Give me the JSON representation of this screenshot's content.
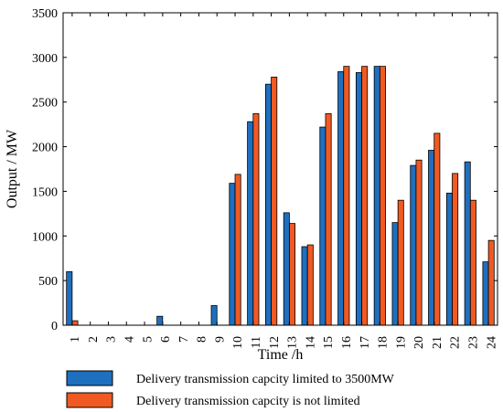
{
  "chart_data": {
    "type": "bar",
    "xlabel": "Time /h",
    "ylabel": "Output / MW",
    "ylim": [
      0,
      3500
    ],
    "yticks": [
      0,
      500,
      1000,
      1500,
      2000,
      2500,
      3000,
      3500
    ],
    "categories": [
      "1",
      "2",
      "3",
      "4",
      "5",
      "6",
      "7",
      "8",
      "9",
      "10",
      "11",
      "12",
      "13",
      "14",
      "15",
      "16",
      "17",
      "18",
      "19",
      "20",
      "21",
      "22",
      "23",
      "24"
    ],
    "series": [
      {
        "name": "Delivery transmission capcity limited to 3500MW",
        "color": "#1f6fbf",
        "values": [
          600,
          0,
          0,
          0,
          0,
          100,
          0,
          0,
          220,
          1590,
          2280,
          2700,
          1260,
          880,
          2220,
          2840,
          2830,
          2900,
          1150,
          1790,
          1960,
          1480,
          1830,
          710
        ]
      },
      {
        "name": "Delivery transmission capcity is not limited",
        "color": "#f05a22",
        "values": [
          50,
          0,
          0,
          0,
          0,
          0,
          0,
          0,
          0,
          1690,
          2370,
          2780,
          1140,
          900,
          2370,
          2900,
          2900,
          2900,
          1400,
          1850,
          2150,
          1700,
          1400,
          950
        ]
      }
    ],
    "legend_position": "bottom",
    "grid": false
  }
}
